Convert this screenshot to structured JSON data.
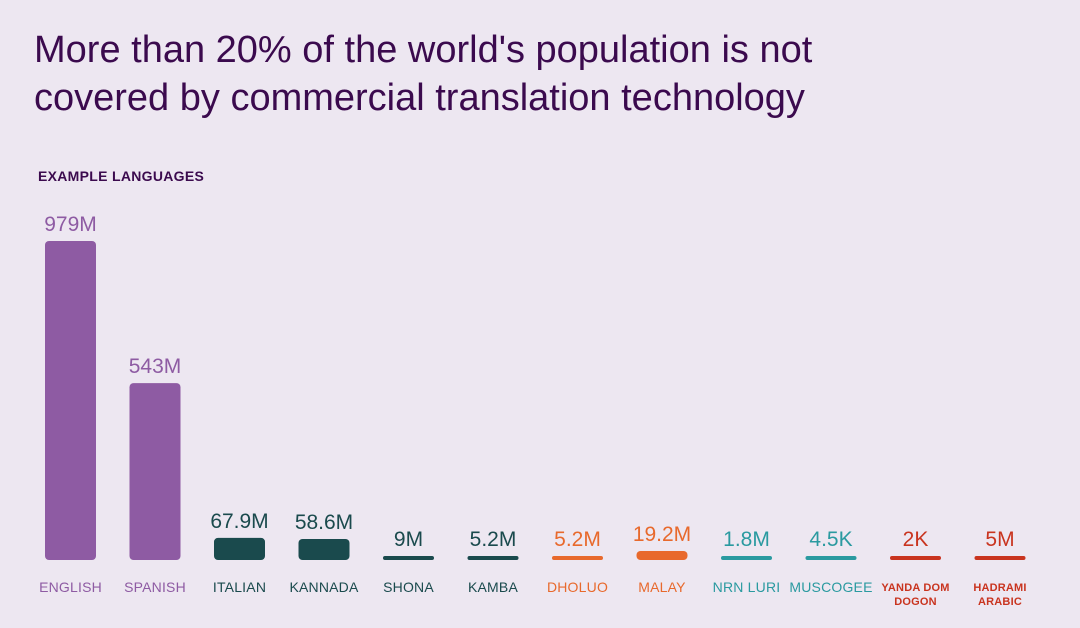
{
  "chart_data": {
    "type": "bar",
    "title": "More than 20% of the world's population is not covered by commercial translation technology",
    "subtitle": "EXAMPLE LANGUAGES",
    "xlabel": "",
    "ylabel": "",
    "categories": [
      "ENGLISH",
      "SPANISH",
      "ITALIAN",
      "KANNADA",
      "SHONA",
      "KAMBA",
      "DHOLUO",
      "MALAY",
      "NRN LURI",
      "MUSCOGEE",
      "YANDA DOM DOGON",
      "HADRAMI ARABIC"
    ],
    "category_lines": [
      [
        "ENGLISH"
      ],
      [
        "SPANISH"
      ],
      [
        "ITALIAN"
      ],
      [
        "KANNADA"
      ],
      [
        "SHONA"
      ],
      [
        "KAMBA"
      ],
      [
        "DHOLUO"
      ],
      [
        "MALAY"
      ],
      [
        "NRN LURI"
      ],
      [
        "MUSCOGEE"
      ],
      [
        "YANDA DOM",
        "DOGON"
      ],
      [
        "HADRAMI",
        "ARABIC"
      ]
    ],
    "values": [
      979000000,
      543000000,
      67900000,
      58600000,
      9000000,
      5200000,
      5200000,
      19200000,
      1800000,
      4500,
      2000,
      5000000
    ],
    "labels": [
      "979M",
      "543M",
      "67.9M",
      "58.6M",
      "9M",
      "5.2M",
      "5.2M",
      "19.2M",
      "1.8M",
      "4.5K",
      "2K",
      "5M"
    ],
    "colors": [
      "#8E5BA3",
      "#8E5BA3",
      "#1A4A4D",
      "#1A4A4D",
      "#1A4A4D",
      "#1A4A4D",
      "#E8692C",
      "#E8692C",
      "#2A9AA0",
      "#2A9AA0",
      "#C9341F",
      "#C9341F"
    ],
    "ylim": [
      0,
      1000000000
    ]
  }
}
